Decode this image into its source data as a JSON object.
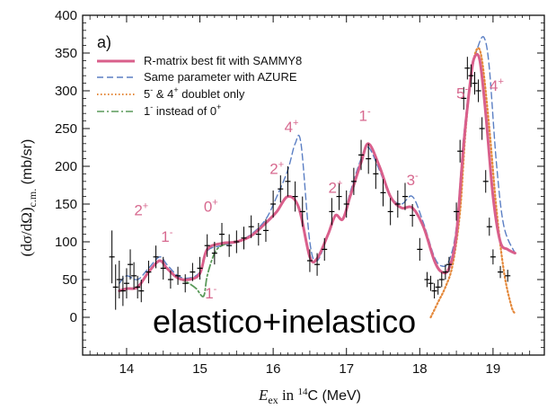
{
  "chart_data": {
    "type": "line",
    "panel_label": "a)",
    "xlabel": "E_ex in 14C (MeV)",
    "xlabel_parts": {
      "sym": "E",
      "sub": "ex",
      "mid": " in ",
      "iso": "14",
      "rest": "C (MeV)"
    },
    "ylabel": "(dσ/dΩ)c.m. (mb/sr)",
    "ylabel_parts": {
      "main": "(dσ/dΩ)",
      "sub": "c.m.",
      "rest": " (mb/sr)"
    },
    "xlim": [
      13.4,
      19.7
    ],
    "ylim": [
      -50,
      400
    ],
    "xticks": [
      14,
      15,
      16,
      17,
      18,
      19
    ],
    "yticks": [
      0,
      50,
      100,
      150,
      200,
      250,
      300,
      350,
      400
    ],
    "legend_position": "upper-left",
    "colors": {
      "sammy": "#d95f8b",
      "azure": "#5b7fc4",
      "doublet": "#e4883a",
      "alt": "#5a9a5a",
      "data": "#000000"
    },
    "series": [
      {
        "name": "R-matrix best fit with SAMMY8",
        "style": "solid",
        "x": [
          13.9,
          14.0,
          14.15,
          14.3,
          14.45,
          14.55,
          14.7,
          14.85,
          15.0,
          15.1,
          15.3,
          15.5,
          15.7,
          15.9,
          16.05,
          16.2,
          16.35,
          16.5,
          16.6,
          16.75,
          16.85,
          16.95,
          17.05,
          17.2,
          17.3,
          17.45,
          17.6,
          17.75,
          17.9,
          18.05,
          18.2,
          18.3,
          18.4,
          18.5,
          18.6,
          18.7,
          18.75,
          18.82,
          18.9,
          19.0,
          19.1,
          19.2,
          19.3
        ],
        "y": [
          35,
          38,
          40,
          60,
          75,
          65,
          52,
          50,
          58,
          90,
          98,
          100,
          108,
          125,
          140,
          160,
          145,
          80,
          78,
          110,
          135,
          130,
          160,
          205,
          230,
          200,
          160,
          145,
          145,
          120,
          75,
          60,
          65,
          110,
          230,
          320,
          345,
          340,
          270,
          160,
          100,
          90,
          85
        ]
      },
      {
        "name": "Same parameter with AZURE",
        "style": "dashed",
        "x": [
          13.9,
          14.0,
          14.15,
          14.3,
          14.45,
          14.55,
          14.7,
          14.85,
          15.0,
          15.1,
          15.3,
          15.5,
          15.7,
          15.9,
          16.05,
          16.2,
          16.3,
          16.38,
          16.5,
          16.6,
          16.75,
          16.85,
          16.95,
          17.05,
          17.2,
          17.3,
          17.45,
          17.6,
          17.75,
          17.9,
          18.05,
          18.2,
          18.3,
          18.4,
          18.5,
          18.6,
          18.7,
          18.8,
          18.88,
          18.95,
          19.05,
          19.15,
          19.3
        ],
        "y": [
          45,
          55,
          50,
          65,
          80,
          70,
          55,
          52,
          60,
          88,
          95,
          100,
          110,
          130,
          160,
          195,
          230,
          230,
          100,
          75,
          110,
          135,
          130,
          165,
          210,
          225,
          195,
          160,
          150,
          160,
          125,
          80,
          68,
          75,
          120,
          240,
          320,
          360,
          370,
          330,
          200,
          120,
          85
        ]
      },
      {
        "name": "5- & 4+ doublet only",
        "style": "dotted",
        "x": [
          18.15,
          18.25,
          18.35,
          18.45,
          18.55,
          18.62,
          18.7,
          18.78,
          18.85,
          18.95,
          19.05,
          19.15,
          19.25,
          19.3
        ],
        "y": [
          0,
          20,
          40,
          70,
          140,
          240,
          320,
          355,
          340,
          250,
          140,
          60,
          15,
          5
        ]
      },
      {
        "name": "1- instead of 0+",
        "style": "dashdot",
        "x": [
          14.7,
          14.85,
          14.95,
          15.05,
          15.1,
          15.2,
          15.3,
          15.45,
          15.6
        ],
        "y": [
          52,
          45,
          38,
          28,
          55,
          85,
          95,
          100,
          102
        ]
      },
      {
        "name": "data",
        "style": "points",
        "x": [
          13.8,
          13.85,
          13.9,
          13.95,
          14.0,
          14.05,
          14.1,
          14.15,
          14.2,
          14.3,
          14.4,
          14.5,
          14.6,
          14.7,
          14.8,
          14.9,
          15.0,
          15.1,
          15.2,
          15.3,
          15.4,
          15.5,
          15.6,
          15.7,
          15.8,
          15.9,
          16.0,
          16.1,
          16.2,
          16.3,
          16.4,
          16.5,
          16.6,
          16.7,
          16.8,
          16.9,
          17.0,
          17.1,
          17.2,
          17.3,
          17.4,
          17.5,
          17.6,
          17.7,
          17.8,
          17.9,
          18.0,
          18.1,
          18.15,
          18.2,
          18.25,
          18.3,
          18.35,
          18.4,
          18.5,
          18.55,
          18.6,
          18.65,
          18.7,
          18.75,
          18.8,
          18.85,
          18.9,
          18.95,
          19.0,
          19.1,
          19.2
        ],
        "y": [
          80,
          40,
          50,
          35,
          45,
          70,
          55,
          40,
          35,
          60,
          80,
          65,
          50,
          55,
          45,
          60,
          65,
          95,
          85,
          110,
          95,
          100,
          105,
          120,
          110,
          115,
          150,
          170,
          180,
          160,
          140,
          75,
          70,
          90,
          140,
          160,
          150,
          180,
          215,
          210,
          190,
          165,
          140,
          150,
          160,
          135,
          90,
          50,
          45,
          35,
          40,
          50,
          60,
          70,
          140,
          220,
          290,
          330,
          320,
          310,
          300,
          250,
          180,
          120,
          80,
          60,
          55
        ],
        "err": [
          35,
          30,
          25,
          20,
          20,
          20,
          18,
          15,
          15,
          15,
          15,
          15,
          12,
          12,
          12,
          12,
          15,
          15,
          15,
          15,
          15,
          15,
          15,
          15,
          15,
          15,
          18,
          18,
          20,
          20,
          20,
          15,
          15,
          15,
          18,
          18,
          18,
          18,
          20,
          20,
          20,
          18,
          18,
          18,
          18,
          15,
          15,
          10,
          10,
          10,
          10,
          10,
          10,
          10,
          12,
          15,
          15,
          15,
          15,
          15,
          15,
          15,
          15,
          12,
          10,
          8,
          8
        ]
      }
    ],
    "annotations": [
      {
        "text": "2",
        "sup": "+",
        "x": 14.2,
        "y": 135
      },
      {
        "text": "1",
        "sup": "-",
        "x": 14.55,
        "y": 100
      },
      {
        "text": "0",
        "sup": "+",
        "x": 15.15,
        "y": 140
      },
      {
        "text": "1",
        "sup": "-",
        "x": 15.15,
        "y": 25
      },
      {
        "text": "2",
        "sup": "+",
        "x": 16.05,
        "y": 190
      },
      {
        "text": "4",
        "sup": "+",
        "x": 16.25,
        "y": 245
      },
      {
        "text": "2",
        "sup": "+",
        "x": 16.85,
        "y": 165
      },
      {
        "text": "1",
        "sup": "-",
        "x": 17.25,
        "y": 260
      },
      {
        "text": "3",
        "sup": "-",
        "x": 17.9,
        "y": 175
      },
      {
        "text": "5",
        "sup": "-",
        "x": 18.58,
        "y": 290
      },
      {
        "text": "4",
        "sup": "+",
        "x": 19.05,
        "y": 300
      }
    ],
    "legend": [
      {
        "label": "R-matrix best fit with SAMMY8",
        "main": "R-matrix best fit with SAMMY8",
        "style": "solid"
      },
      {
        "label": "Same parameter with AZURE",
        "main": "Same parameter with AZURE",
        "style": "dashed"
      },
      {
        "label": "5- & 4+ doublet only",
        "p1": "5",
        "s1": "-",
        "p2": " & 4",
        "s2": "+",
        "p3": " doublet only",
        "style": "dotted"
      },
      {
        "label": "1- instead of 0+",
        "p1": "1",
        "s1": "-",
        "p2": " instead of 0",
        "s2": "+",
        "p3": "",
        "style": "dashdot"
      }
    ],
    "overlay_text": "elastico+inelastico"
  }
}
